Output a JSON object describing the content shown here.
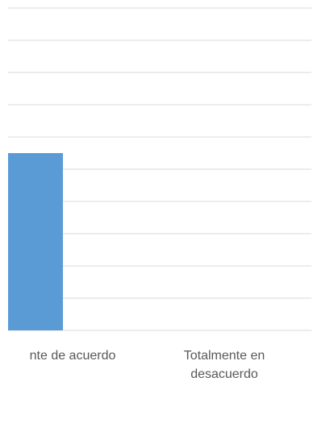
{
  "chart_data": {
    "type": "bar",
    "categories": [
      "Totalmente de acuerdo",
      "Totalmente en desacuerdo"
    ],
    "visible_category_text": [
      "nte de acuerdo",
      "Totalmente en desacuerdo"
    ],
    "values": [
      55,
      0
    ],
    "ylim": [
      0,
      100
    ],
    "grid": true,
    "bar_color": "#5b9bd5",
    "title": "",
    "xlabel": "",
    "ylabel": ""
  }
}
